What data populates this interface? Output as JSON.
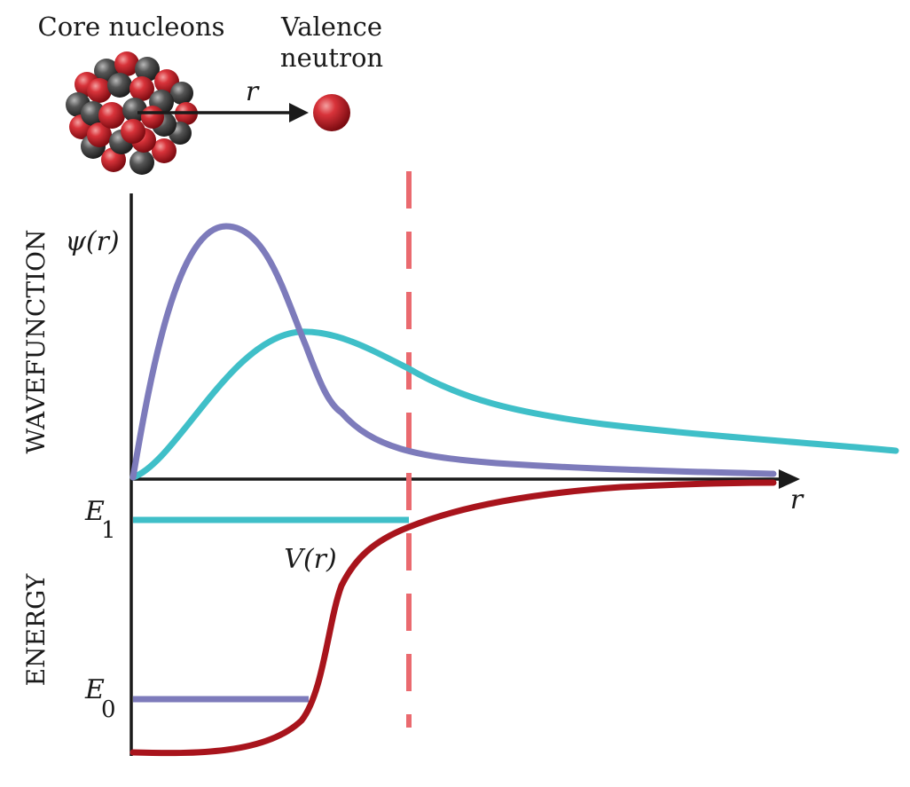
{
  "header": {
    "core_label": "Core nucleons",
    "valence_label_line1": "Valence",
    "valence_label_line2": "neutron",
    "separation_label": "r"
  },
  "axes": {
    "upper_axis_title": "WAVEFUNCTION",
    "lower_axis_title": "ENERGY",
    "x_axis_label": "r"
  },
  "labels": {
    "psi": "ψ(r)",
    "potential": "V(r)",
    "e1_letter": "E",
    "e1_sub": "1",
    "e0_letter": "E",
    "e0_sub": "0"
  },
  "colors": {
    "ground_state": "#7d7bbb",
    "excited_state": "#3fbfc8",
    "potential": "#a8141c",
    "nuclear_radius_dash": "#ea6a6f",
    "proton_red": "#c8202a",
    "neutron_gray": "#4a4a4a",
    "axis": "#1a1a1a"
  },
  "icons": {
    "nucleus": "nucleus-cluster-icon",
    "neutron": "neutron-sphere-icon",
    "arrow": "arrow-right-icon"
  }
}
